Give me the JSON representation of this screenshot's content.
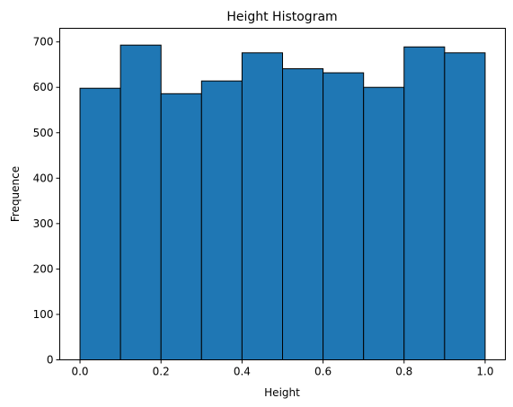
{
  "chart_data": {
    "type": "bar",
    "title": "Height Histogram",
    "xlabel": "Height",
    "ylabel": "Frequence",
    "xlim": [
      -0.05,
      1.05
    ],
    "ylim": [
      0,
      730
    ],
    "xticks": [
      "0.0",
      "0.2",
      "0.4",
      "0.6",
      "0.8",
      "1.0"
    ],
    "yticks": [
      "0",
      "100",
      "200",
      "300",
      "400",
      "500",
      "600",
      "700"
    ],
    "grid": false,
    "bar_color": "#1f77b4",
    "edge_color": "#000000",
    "bins": [
      {
        "x0": 0.0,
        "x1": 0.1,
        "value": 598
      },
      {
        "x0": 0.1,
        "x1": 0.2,
        "value": 693
      },
      {
        "x0": 0.2,
        "x1": 0.3,
        "value": 586
      },
      {
        "x0": 0.3,
        "x1": 0.4,
        "value": 614
      },
      {
        "x0": 0.4,
        "x1": 0.5,
        "value": 676
      },
      {
        "x0": 0.5,
        "x1": 0.6,
        "value": 641
      },
      {
        "x0": 0.6,
        "x1": 0.7,
        "value": 632
      },
      {
        "x0": 0.7,
        "x1": 0.8,
        "value": 600
      },
      {
        "x0": 0.8,
        "x1": 0.9,
        "value": 689
      },
      {
        "x0": 0.9,
        "x1": 1.0,
        "value": 676
      }
    ]
  }
}
